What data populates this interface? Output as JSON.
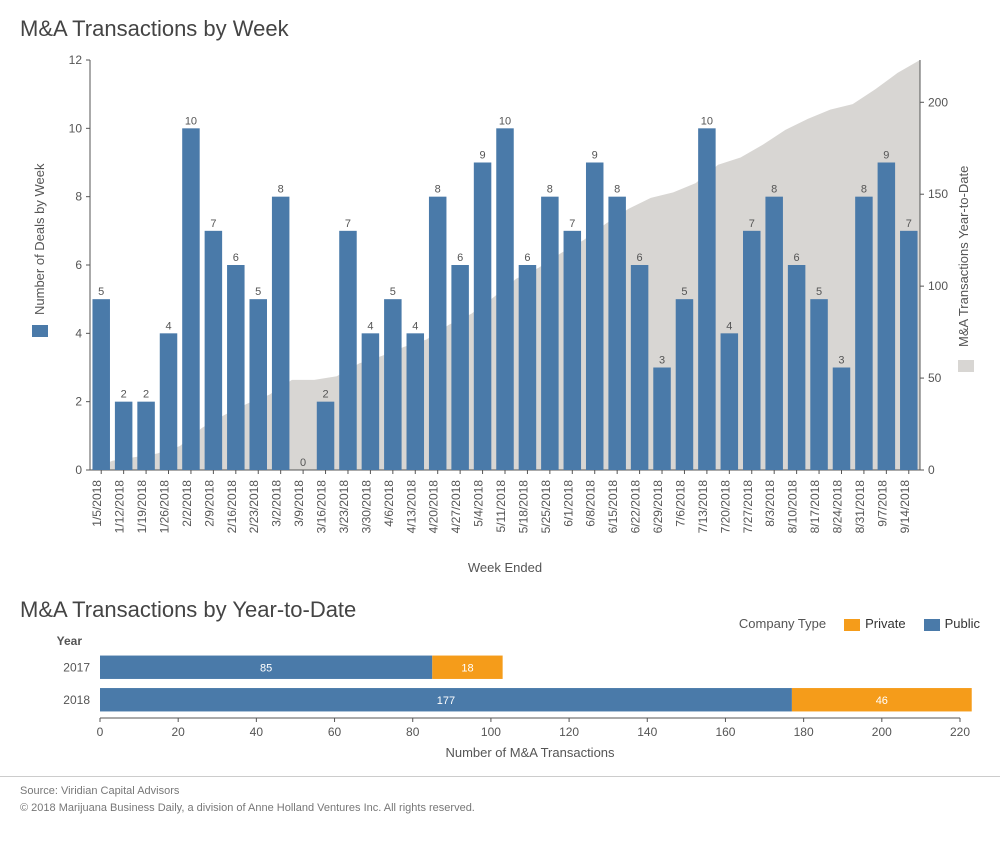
{
  "title_top": "M&A Transactions by Week",
  "title_bottom": "M&A Transactions by Year-to-Date",
  "footer_line1": "Source: Viridian Capital Advisors",
  "footer_line2": "© 2018 Marijuana Business Daily, a division of Anne Holland Ventures Inc. All rights reserved.",
  "legend": {
    "title": "Company Type",
    "private": "Private",
    "public": "Public"
  },
  "colors": {
    "bar": "#4a7aa9",
    "area": "#d8d6d3",
    "private": "#f59c1a",
    "public": "#4a7aa9",
    "grid": "#d0d0d0",
    "text": "#555555"
  },
  "top_chart": {
    "y_left_label": "Number of Deals by Week",
    "y_right_label": "M&A Transactions Year-to-Date",
    "x_label": "Week Ended",
    "y_left_max": 12,
    "y_left_step": 2,
    "y_right_max": 200,
    "y_right_step": 50,
    "area_max_value": 223,
    "weeks": [
      {
        "d": "1/5/2018",
        "v": 5
      },
      {
        "d": "1/12/2018",
        "v": 2
      },
      {
        "d": "1/19/2018",
        "v": 2
      },
      {
        "d": "1/26/2018",
        "v": 4
      },
      {
        "d": "2/2/2018",
        "v": 10
      },
      {
        "d": "2/9/2018",
        "v": 7
      },
      {
        "d": "2/16/2018",
        "v": 6
      },
      {
        "d": "2/23/2018",
        "v": 5
      },
      {
        "d": "3/2/2018",
        "v": 8
      },
      {
        "d": "3/9/2018",
        "v": 0
      },
      {
        "d": "3/16/2018",
        "v": 2
      },
      {
        "d": "3/23/2018",
        "v": 7
      },
      {
        "d": "3/30/2018",
        "v": 4
      },
      {
        "d": "4/6/2018",
        "v": 5
      },
      {
        "d": "4/13/2018",
        "v": 4
      },
      {
        "d": "4/20/2018",
        "v": 8
      },
      {
        "d": "4/27/2018",
        "v": 6
      },
      {
        "d": "5/4/2018",
        "v": 9
      },
      {
        "d": "5/11/2018",
        "v": 10
      },
      {
        "d": "5/18/2018",
        "v": 6
      },
      {
        "d": "5/25/2018",
        "v": 8
      },
      {
        "d": "6/1/2018",
        "v": 7
      },
      {
        "d": "6/8/2018",
        "v": 9
      },
      {
        "d": "6/15/2018",
        "v": 8
      },
      {
        "d": "6/22/2018",
        "v": 6
      },
      {
        "d": "6/29/2018",
        "v": 3
      },
      {
        "d": "7/6/2018",
        "v": 5
      },
      {
        "d": "7/13/2018",
        "v": 10
      },
      {
        "d": "7/20/2018",
        "v": 4
      },
      {
        "d": "7/27/2018",
        "v": 7
      },
      {
        "d": "8/3/2018",
        "v": 8
      },
      {
        "d": "8/10/2018",
        "v": 6
      },
      {
        "d": "8/17/2018",
        "v": 5
      },
      {
        "d": "8/24/2018",
        "v": 3
      },
      {
        "d": "8/31/2018",
        "v": 8
      },
      {
        "d": "9/7/2018",
        "v": 9
      },
      {
        "d": "9/14/2018",
        "v": 7
      }
    ]
  },
  "bottom_chart": {
    "x_label": "Number of M&A Transactions",
    "year_header": "Year",
    "x_max": 220,
    "x_step": 20,
    "rows": [
      {
        "year": "2017",
        "public": 85,
        "private": 18
      },
      {
        "year": "2018",
        "public": 177,
        "private": 46
      }
    ]
  }
}
